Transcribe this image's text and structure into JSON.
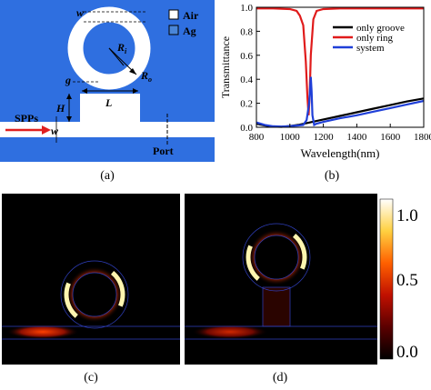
{
  "figure": {
    "captions": [
      "(a)",
      "(b)",
      "(c)",
      "(d)"
    ]
  },
  "panel_a": {
    "legend": [
      {
        "label": "Air",
        "color": "#ffffff"
      },
      {
        "label": "Ag",
        "color": "#4a86d8"
      }
    ],
    "labels": {
      "w_top": "w",
      "ri": "R",
      "ri_sub": "i",
      "ro": "R",
      "ro_sub": "o",
      "g": "g",
      "h": "H",
      "l": "L",
      "spps": "SPPs",
      "w_bottom": "w",
      "port": "Port"
    },
    "colors": {
      "metal": "#2f6fe0",
      "arrow": "#e02020"
    }
  },
  "chart_data": {
    "type": "line",
    "xlabel": "Wavelength(nm)",
    "ylabel": "Transmittance",
    "xlim": [
      800,
      1800
    ],
    "ylim": [
      0.0,
      1.0
    ],
    "xticks": [
      "800",
      "1000",
      "1200",
      "1400",
      "1600",
      "1800"
    ],
    "yticks": [
      "0.0",
      "0.2",
      "0.4",
      "0.6",
      "0.8",
      "1.0"
    ],
    "legend_position": "top-right",
    "grid": false,
    "series": [
      {
        "name": "only groove",
        "color": "#000000",
        "x": [
          800,
          850,
          900,
          950,
          1000,
          1050,
          1100,
          1150,
          1200,
          1300,
          1400,
          1500,
          1600,
          1700,
          1800
        ],
        "y": [
          0.03,
          0.015,
          0.005,
          0.004,
          0.01,
          0.02,
          0.035,
          0.05,
          0.065,
          0.095,
          0.125,
          0.155,
          0.185,
          0.215,
          0.24
        ]
      },
      {
        "name": "only ring",
        "color": "#e01b1b",
        "x": [
          800,
          900,
          1000,
          1040,
          1060,
          1080,
          1095,
          1105,
          1112,
          1118,
          1125,
          1140,
          1160,
          1200,
          1300,
          1400,
          1600,
          1800
        ],
        "y": [
          0.99,
          0.99,
          0.985,
          0.97,
          0.93,
          0.85,
          0.55,
          0.25,
          0.1,
          0.25,
          0.6,
          0.9,
          0.97,
          0.985,
          0.99,
          0.99,
          0.99,
          0.99
        ]
      },
      {
        "name": "system",
        "color": "#1f3fd8",
        "x": [
          800,
          850,
          900,
          950,
          1000,
          1050,
          1080,
          1100,
          1115,
          1125,
          1130,
          1135,
          1145,
          1160,
          1200,
          1300,
          1400,
          1500,
          1600,
          1700,
          1800
        ],
        "y": [
          0.04,
          0.02,
          0.008,
          0.006,
          0.01,
          0.015,
          0.02,
          0.06,
          0.2,
          0.42,
          0.3,
          0.1,
          0.02,
          0.03,
          0.045,
          0.075,
          0.1,
          0.13,
          0.16,
          0.19,
          0.22
        ]
      }
    ]
  },
  "colorbar": {
    "ticks": [
      "1.0",
      "0.5",
      "0.0"
    ],
    "values": [
      1.0,
      0.5,
      0.0
    ]
  }
}
